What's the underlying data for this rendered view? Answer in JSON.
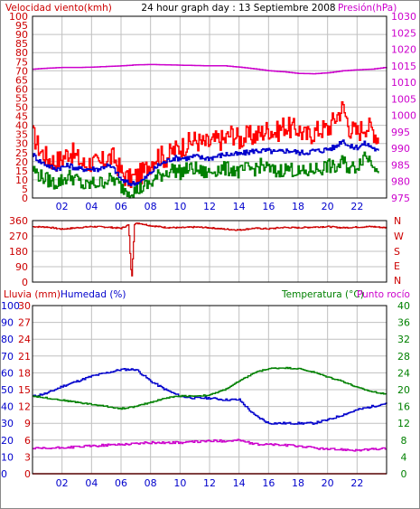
{
  "header": {
    "left_title": "Velocidad viento(kmh)",
    "center_title": "24 hour graph day : 13 Septiembre 2008",
    "right_title": "Presión(hPa)"
  },
  "wind_dir_labels": [
    "N",
    "W",
    "S",
    "E",
    "N"
  ],
  "bottom_header": {
    "rain_label": "Lluvia (mm)",
    "humidity_label": "Humedad (%)",
    "temperature_label": "Temperatura (°C)",
    "dewpoint_label": "Punto rocío"
  },
  "colors": {
    "frame": "#000000",
    "grid": "#c0c0c0",
    "wind_speed": "#ff0000",
    "wind_avg": "#0000cc",
    "wind_gust_low": "#008000",
    "pressure": "#cc00cc",
    "wind_direction": "#cc0000",
    "humidity": "#0000cc",
    "temperature": "#008000",
    "dewpoint": "#cc00cc",
    "rain": "#ff0000",
    "x_ticks_text": "#0000cc",
    "left_axis_text": "#cc0000",
    "temp_axis_text": "#008000",
    "pressure_axis_text": "#cc00cc"
  },
  "chart_data": [
    {
      "type": "line",
      "name": "wind-pressure-panel",
      "x_ticks": [
        "02",
        "04",
        "06",
        "08",
        "10",
        "12",
        "14",
        "16",
        "18",
        "20",
        "22"
      ],
      "x_range_hours": [
        0,
        24
      ],
      "y_left_label": "Velocidad viento(kmh)",
      "y_left_ticks": [
        0,
        5,
        10,
        15,
        20,
        25,
        30,
        35,
        40,
        45,
        50,
        55,
        60,
        65,
        70,
        75,
        80,
        85,
        90,
        95,
        100
      ],
      "y_left_range": [
        0,
        100
      ],
      "y_right_label": "Presión(hPa)",
      "y_right_ticks": [
        975,
        980,
        985,
        990,
        995,
        1000,
        1005,
        1010,
        1015,
        1020,
        1025,
        1030
      ],
      "y_right_range": [
        975,
        1030
      ],
      "grid": true,
      "series": [
        {
          "role": "wind_speed",
          "axis": "left",
          "x": [
            0,
            0.5,
            1,
            1.5,
            2,
            2.5,
            3,
            3.5,
            4,
            4.5,
            5,
            5.5,
            6,
            6.5,
            7,
            7.5,
            8,
            8.5,
            9,
            9.5,
            10,
            10.5,
            11,
            11.5,
            12,
            12.5,
            13,
            13.5,
            14,
            14.5,
            15,
            15.5,
            16,
            16.5,
            17,
            17.5,
            18,
            18.5,
            19,
            19.5,
            20,
            20.5,
            21,
            21.5,
            22,
            22.5,
            23,
            23.5
          ],
          "values": [
            35,
            26,
            22,
            20,
            22,
            26,
            22,
            18,
            20,
            18,
            22,
            22,
            14,
            10,
            12,
            14,
            20,
            24,
            22,
            26,
            28,
            30,
            32,
            30,
            30,
            32,
            32,
            36,
            32,
            34,
            34,
            36,
            38,
            36,
            40,
            38,
            38,
            34,
            36,
            38,
            38,
            44,
            50,
            38,
            36,
            40,
            38,
            32
          ]
        },
        {
          "role": "wind_avg",
          "axis": "left",
          "x": [
            0,
            0.5,
            1,
            1.5,
            2,
            2.5,
            3,
            3.5,
            4,
            4.5,
            5,
            5.5,
            6,
            6.5,
            7,
            7.5,
            8,
            8.5,
            9,
            9.5,
            10,
            10.5,
            11,
            11.5,
            12,
            12.5,
            13,
            13.5,
            14,
            14.5,
            15,
            15.5,
            16,
            16.5,
            17,
            17.5,
            18,
            18.5,
            19,
            19.5,
            20,
            20.5,
            21,
            21.5,
            22,
            22.5,
            23,
            23.5
          ],
          "values": [
            24,
            20,
            18,
            16,
            17,
            18,
            16,
            16,
            16,
            16,
            18,
            16,
            10,
            8,
            8,
            10,
            14,
            18,
            20,
            22,
            22,
            22,
            23,
            22,
            22,
            23,
            24,
            24,
            24,
            25,
            26,
            26,
            26,
            25,
            26,
            26,
            25,
            25,
            26,
            26,
            27,
            28,
            32,
            28,
            28,
            30,
            28,
            25
          ]
        },
        {
          "role": "wind_low",
          "axis": "left",
          "x": [
            0,
            0.5,
            1,
            1.5,
            2,
            2.5,
            3,
            3.5,
            4,
            4.5,
            5,
            5.5,
            6,
            6.5,
            7,
            7.5,
            8,
            8.5,
            9,
            9.5,
            10,
            10.5,
            11,
            11.5,
            12,
            12.5,
            13,
            13.5,
            14,
            14.5,
            15,
            15.5,
            16,
            16.5,
            17,
            17.5,
            18,
            18.5,
            19,
            19.5,
            20,
            20.5,
            21,
            21.5,
            22,
            22.5,
            23,
            23.5
          ],
          "values": [
            16,
            12,
            10,
            8,
            10,
            12,
            10,
            6,
            8,
            8,
            10,
            10,
            6,
            4,
            4,
            6,
            8,
            12,
            14,
            16,
            14,
            16,
            16,
            14,
            14,
            16,
            16,
            16,
            14,
            16,
            16,
            18,
            16,
            14,
            16,
            16,
            14,
            14,
            16,
            16,
            18,
            16,
            20,
            16,
            18,
            24,
            20,
            16
          ]
        },
        {
          "role": "pressure",
          "axis": "right",
          "x": [
            0,
            1,
            2,
            3,
            4,
            5,
            6,
            7,
            8,
            9,
            10,
            11,
            12,
            13,
            14,
            15,
            16,
            17,
            18,
            19,
            20,
            21,
            22,
            23,
            24
          ],
          "values": [
            1014,
            1014.3,
            1014.5,
            1014.5,
            1014.6,
            1014.8,
            1015,
            1015.3,
            1015.4,
            1015.3,
            1015.2,
            1015.1,
            1015,
            1015,
            1014.6,
            1014.1,
            1013.5,
            1013.2,
            1012.7,
            1012.6,
            1012.9,
            1013.5,
            1013.8,
            1014.0,
            1014.6
          ]
        }
      ]
    },
    {
      "type": "line",
      "name": "wind-direction-panel",
      "x_range_hours": [
        0,
        24
      ],
      "y_left_ticks": [
        0,
        90,
        180,
        270,
        360
      ],
      "y_range": [
        0,
        360
      ],
      "grid": true,
      "series": [
        {
          "role": "wind_direction",
          "x": [
            0,
            1,
            2,
            3,
            4,
            5,
            6,
            6.5,
            6.7,
            6.9,
            7.2,
            8,
            9,
            10,
            11,
            12,
            13,
            14,
            15,
            16,
            17,
            18,
            19,
            20,
            21,
            22,
            23,
            24
          ],
          "values": [
            325,
            322,
            310,
            318,
            325,
            322,
            315,
            335,
            5,
            340,
            345,
            330,
            320,
            318,
            322,
            318,
            310,
            305,
            315,
            312,
            320,
            318,
            322,
            325,
            318,
            322,
            325,
            318
          ]
        }
      ]
    },
    {
      "type": "line",
      "name": "humidity-temperature-panel",
      "x_ticks": [
        "02",
        "04",
        "06",
        "08",
        "10",
        "12",
        "14",
        "16",
        "18",
        "20",
        "22"
      ],
      "x_range_hours": [
        0,
        24
      ],
      "y_left_ticks_humidity": [
        0,
        10,
        20,
        30,
        40,
        50,
        60,
        70,
        80,
        90,
        100
      ],
      "y_left_range_humidity": [
        0,
        100
      ],
      "y_left_ticks_rain": [
        0,
        3,
        6,
        9,
        12,
        15,
        18,
        21,
        24,
        27,
        30
      ],
      "y_left_range_rain": [
        0,
        30
      ],
      "y_right_ticks_temp": [
        0,
        2,
        4,
        6,
        8,
        10,
        12,
        14,
        16,
        18,
        20,
        22,
        24,
        26,
        28,
        30,
        32,
        34,
        36,
        38,
        40
      ],
      "y_right_range_temp": [
        0,
        40
      ],
      "grid": true,
      "series": [
        {
          "role": "humidity",
          "axis": "left",
          "x": [
            0,
            1,
            2,
            3,
            4,
            5,
            6,
            7,
            8,
            9,
            10,
            11,
            12,
            13,
            14,
            15,
            16,
            17,
            18,
            19,
            20,
            21,
            22,
            23,
            24
          ],
          "values": [
            46,
            48,
            52,
            55,
            58,
            60,
            62,
            62,
            55,
            50,
            46,
            45,
            45,
            44,
            44,
            35,
            30,
            30,
            30,
            30,
            32,
            35,
            38,
            40,
            42
          ]
        },
        {
          "role": "temperature",
          "axis": "right",
          "x": [
            0,
            1,
            2,
            3,
            4,
            5,
            6,
            7,
            8,
            9,
            10,
            11,
            12,
            13,
            14,
            15,
            16,
            17,
            18,
            19,
            20,
            21,
            22,
            23,
            24
          ],
          "values": [
            18.5,
            18,
            17.5,
            17,
            16.5,
            16,
            15.5,
            16,
            17,
            18,
            18.5,
            18.5,
            18.7,
            20,
            22,
            24,
            25,
            25.2,
            25,
            24.2,
            23,
            22,
            20.5,
            19.5,
            19
          ]
        },
        {
          "role": "dewpoint",
          "axis": "right",
          "x": [
            0,
            1,
            2,
            3,
            4,
            5,
            6,
            7,
            8,
            9,
            10,
            11,
            12,
            13,
            14,
            15,
            16,
            17,
            18,
            19,
            20,
            21,
            22,
            23,
            24
          ],
          "values": [
            6,
            6,
            6.2,
            6.4,
            6.6,
            6.8,
            7,
            7.2,
            7.4,
            7.4,
            7.4,
            7.6,
            7.8,
            7.8,
            8,
            7,
            7,
            6.8,
            6.6,
            6.2,
            5.8,
            5.8,
            5.6,
            5.8,
            6
          ]
        },
        {
          "role": "rain",
          "axis": "left",
          "x": [
            0,
            24
          ],
          "values": [
            0,
            0
          ]
        }
      ]
    }
  ]
}
